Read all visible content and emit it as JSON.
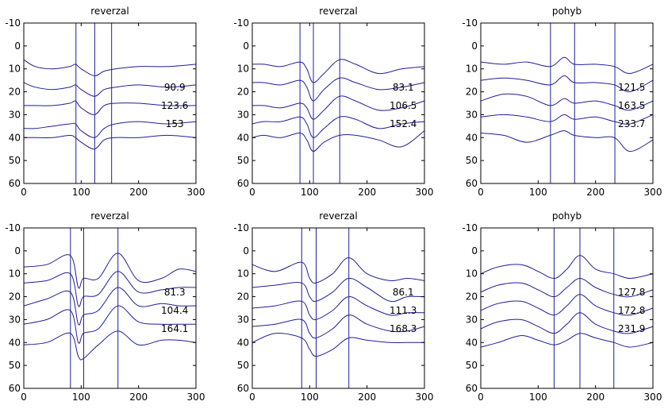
{
  "chart_data": [
    {
      "type": "line",
      "title": "reverzal",
      "xlim": [
        0,
        300
      ],
      "ylim": [
        -10,
        60
      ],
      "y_reversed": true,
      "xticks": [
        0,
        100,
        200,
        300
      ],
      "yticks": [
        -10,
        0,
        10,
        20,
        30,
        40,
        50,
        60
      ],
      "markers": [
        90.9,
        123.6,
        153
      ],
      "marker_labels": [
        "90.9",
        "123.6",
        "153"
      ],
      "series": [
        {
          "x": [
            0,
            20,
            50,
            80,
            90,
            100,
            123,
            140,
            160,
            200,
            250,
            300
          ],
          "values": [
            6,
            9,
            10,
            9,
            8,
            10,
            13,
            11,
            10,
            9,
            9,
            8
          ]
        },
        {
          "x": [
            0,
            20,
            50,
            80,
            90,
            100,
            123,
            140,
            160,
            200,
            250,
            300
          ],
          "values": [
            16,
            18,
            19,
            18,
            17,
            19,
            22,
            19,
            18,
            17,
            18,
            17
          ]
        },
        {
          "x": [
            0,
            20,
            50,
            80,
            90,
            100,
            123,
            140,
            160,
            200,
            250,
            300
          ],
          "values": [
            26,
            26,
            26,
            25,
            24,
            27,
            30,
            26,
            25,
            25,
            26,
            26
          ]
        },
        {
          "x": [
            0,
            20,
            50,
            80,
            90,
            100,
            123,
            140,
            160,
            200,
            250,
            300
          ],
          "values": [
            36,
            36,
            35,
            34,
            34,
            37,
            40,
            36,
            34,
            33,
            34,
            33
          ]
        },
        {
          "x": [
            0,
            20,
            50,
            80,
            90,
            100,
            123,
            140,
            160,
            200,
            250,
            300
          ],
          "values": [
            40,
            40,
            40,
            39,
            40,
            42,
            45,
            41,
            40,
            40,
            39,
            40
          ]
        }
      ]
    },
    {
      "type": "line",
      "title": "reverzal",
      "xlim": [
        0,
        300
      ],
      "ylim": [
        -10,
        60
      ],
      "y_reversed": true,
      "xticks": [
        0,
        100,
        200,
        300
      ],
      "yticks": [
        -10,
        0,
        10,
        20,
        30,
        40,
        50,
        60
      ],
      "markers": [
        83.1,
        106.5,
        152.4
      ],
      "marker_labels": [
        "83.1",
        "106.5",
        "152.4"
      ],
      "series": [
        {
          "x": [
            0,
            20,
            50,
            83,
            95,
            106,
            125,
            152,
            180,
            220,
            260,
            300
          ],
          "values": [
            8,
            8,
            9,
            7,
            10,
            16,
            12,
            6,
            8,
            12,
            10,
            9
          ]
        },
        {
          "x": [
            0,
            20,
            50,
            83,
            95,
            106,
            125,
            152,
            180,
            220,
            260,
            300
          ],
          "values": [
            16,
            16,
            17,
            15,
            18,
            24,
            19,
            14,
            16,
            19,
            18,
            16
          ]
        },
        {
          "x": [
            0,
            20,
            50,
            83,
            95,
            106,
            125,
            152,
            180,
            220,
            260,
            300
          ],
          "values": [
            26,
            26,
            27,
            25,
            27,
            32,
            28,
            22,
            24,
            28,
            27,
            24
          ]
        },
        {
          "x": [
            0,
            20,
            50,
            83,
            95,
            106,
            125,
            152,
            180,
            220,
            260,
            300
          ],
          "values": [
            34,
            33,
            33,
            31,
            34,
            40,
            36,
            31,
            32,
            36,
            34,
            33
          ]
        },
        {
          "x": [
            0,
            20,
            50,
            83,
            95,
            106,
            125,
            152,
            180,
            220,
            260,
            300
          ],
          "values": [
            40,
            39,
            40,
            38,
            41,
            46,
            42,
            39,
            39,
            41,
            44,
            37
          ]
        }
      ]
    },
    {
      "type": "line",
      "title": "pohyb",
      "xlim": [
        0,
        300
      ],
      "ylim": [
        -10,
        60
      ],
      "y_reversed": true,
      "xticks": [
        0,
        100,
        200,
        300
      ],
      "yticks": [
        -10,
        0,
        10,
        20,
        30,
        40,
        50,
        60
      ],
      "markers": [
        121.5,
        163.5,
        233.7
      ],
      "marker_labels": [
        "121.5",
        "163.5",
        "233.7"
      ],
      "series": [
        {
          "x": [
            0,
            40,
            80,
            121,
            145,
            163,
            200,
            233,
            260,
            300
          ],
          "values": [
            7,
            8,
            7,
            9,
            5,
            8,
            8,
            9,
            12,
            8
          ]
        },
        {
          "x": [
            0,
            40,
            80,
            121,
            145,
            163,
            200,
            233,
            260,
            300
          ],
          "values": [
            15,
            14,
            15,
            17,
            13,
            16,
            16,
            17,
            20,
            15
          ]
        },
        {
          "x": [
            0,
            40,
            80,
            121,
            145,
            163,
            200,
            233,
            260,
            300
          ],
          "values": [
            24,
            21,
            22,
            26,
            23,
            25,
            24,
            26,
            28,
            24
          ]
        },
        {
          "x": [
            0,
            40,
            80,
            121,
            145,
            163,
            200,
            233,
            260,
            300
          ],
          "values": [
            31,
            30,
            31,
            33,
            30,
            32,
            31,
            33,
            34,
            30
          ]
        },
        {
          "x": [
            0,
            40,
            80,
            121,
            145,
            163,
            200,
            233,
            260,
            300
          ],
          "values": [
            38,
            39,
            42,
            39,
            37,
            39,
            40,
            40,
            46,
            41
          ]
        }
      ]
    },
    {
      "type": "line",
      "title": "reverzal",
      "xlim": [
        0,
        300
      ],
      "ylim": [
        -10,
        60
      ],
      "y_reversed": true,
      "xticks": [
        0,
        100,
        200,
        300
      ],
      "yticks": [
        -10,
        0,
        10,
        20,
        30,
        40,
        50,
        60
      ],
      "markers": [
        81.3,
        104.4,
        164.1
      ],
      "marker_labels": [
        "81.3",
        "104.4",
        "164.1"
      ],
      "series": [
        {
          "x": [
            0,
            40,
            81,
            95,
            104,
            130,
            164,
            200,
            240,
            270,
            300
          ],
          "values": [
            7,
            6,
            2,
            16,
            12,
            12,
            1,
            13,
            12,
            8,
            9
          ]
        },
        {
          "x": [
            0,
            40,
            81,
            95,
            104,
            130,
            164,
            200,
            240,
            270,
            300
          ],
          "values": [
            14,
            13,
            10,
            24,
            20,
            19,
            9,
            18,
            17,
            16,
            16
          ]
        },
        {
          "x": [
            0,
            40,
            81,
            95,
            104,
            130,
            164,
            200,
            240,
            270,
            300
          ],
          "values": [
            24,
            21,
            18,
            32,
            28,
            26,
            16,
            24,
            23,
            24,
            24
          ]
        },
        {
          "x": [
            0,
            40,
            81,
            95,
            104,
            130,
            164,
            200,
            240,
            270,
            300
          ],
          "values": [
            32,
            30,
            26,
            40,
            36,
            34,
            24,
            31,
            32,
            32,
            32
          ]
        },
        {
          "x": [
            0,
            40,
            81,
            95,
            104,
            130,
            164,
            200,
            240,
            270,
            300
          ],
          "values": [
            41,
            40,
            36,
            46,
            47,
            41,
            35,
            41,
            39,
            39,
            40
          ]
        }
      ]
    },
    {
      "type": "line",
      "title": "reverzal",
      "xlim": [
        0,
        300
      ],
      "ylim": [
        -10,
        60
      ],
      "y_reversed": true,
      "xticks": [
        0,
        100,
        200,
        300
      ],
      "yticks": [
        -10,
        0,
        10,
        20,
        30,
        40,
        50,
        60
      ],
      "markers": [
        86.1,
        111.3,
        168.3
      ],
      "marker_labels": [
        "86.1",
        "111.3",
        "168.3"
      ],
      "series": [
        {
          "x": [
            0,
            40,
            86,
            100,
            111,
            140,
            168,
            200,
            240,
            270,
            300
          ],
          "values": [
            6,
            9,
            5,
            12,
            14,
            10,
            3,
            10,
            13,
            12,
            13
          ]
        },
        {
          "x": [
            0,
            40,
            86,
            100,
            111,
            140,
            168,
            200,
            240,
            270,
            300
          ],
          "values": [
            16,
            15,
            14,
            20,
            22,
            18,
            12,
            16,
            22,
            20,
            20
          ]
        },
        {
          "x": [
            0,
            40,
            86,
            100,
            111,
            140,
            168,
            200,
            240,
            270,
            300
          ],
          "values": [
            25,
            24,
            22,
            28,
            30,
            26,
            20,
            24,
            28,
            27,
            27
          ]
        },
        {
          "x": [
            0,
            40,
            86,
            100,
            111,
            140,
            168,
            200,
            240,
            270,
            300
          ],
          "values": [
            33,
            32,
            30,
            36,
            38,
            34,
            28,
            32,
            35,
            35,
            33
          ]
        },
        {
          "x": [
            0,
            40,
            86,
            100,
            111,
            140,
            168,
            200,
            240,
            270,
            300
          ],
          "values": [
            40,
            36,
            38,
            43,
            46,
            43,
            38,
            39,
            40,
            40,
            40
          ]
        }
      ]
    },
    {
      "type": "line",
      "title": "pohyb",
      "xlim": [
        0,
        300
      ],
      "ylim": [
        -10,
        60
      ],
      "y_reversed": true,
      "xticks": [
        0,
        100,
        200,
        300
      ],
      "yticks": [
        -10,
        0,
        10,
        20,
        30,
        40,
        50,
        60
      ],
      "markers": [
        127.8,
        172.8,
        231.9
      ],
      "marker_labels": [
        "127.8",
        "172.8",
        "231.9"
      ],
      "series": [
        {
          "x": [
            0,
            30,
            70,
            100,
            128,
            150,
            173,
            200,
            232,
            260,
            300
          ],
          "values": [
            10,
            7,
            6,
            9,
            12,
            8,
            2,
            8,
            10,
            12,
            10
          ]
        },
        {
          "x": [
            0,
            30,
            70,
            100,
            128,
            150,
            173,
            200,
            232,
            260,
            300
          ],
          "values": [
            18,
            15,
            14,
            17,
            20,
            16,
            12,
            16,
            19,
            20,
            17
          ]
        },
        {
          "x": [
            0,
            30,
            70,
            100,
            128,
            150,
            173,
            200,
            232,
            260,
            300
          ],
          "values": [
            26,
            23,
            22,
            25,
            28,
            24,
            19,
            24,
            27,
            28,
            25
          ]
        },
        {
          "x": [
            0,
            30,
            70,
            100,
            128,
            150,
            173,
            200,
            232,
            260,
            300
          ],
          "values": [
            34,
            31,
            30,
            33,
            36,
            32,
            27,
            32,
            35,
            36,
            33
          ]
        },
        {
          "x": [
            0,
            30,
            70,
            100,
            128,
            150,
            173,
            200,
            232,
            260,
            300
          ],
          "values": [
            42,
            40,
            37,
            39,
            41,
            39,
            36,
            38,
            40,
            42,
            40
          ]
        }
      ]
    }
  ]
}
